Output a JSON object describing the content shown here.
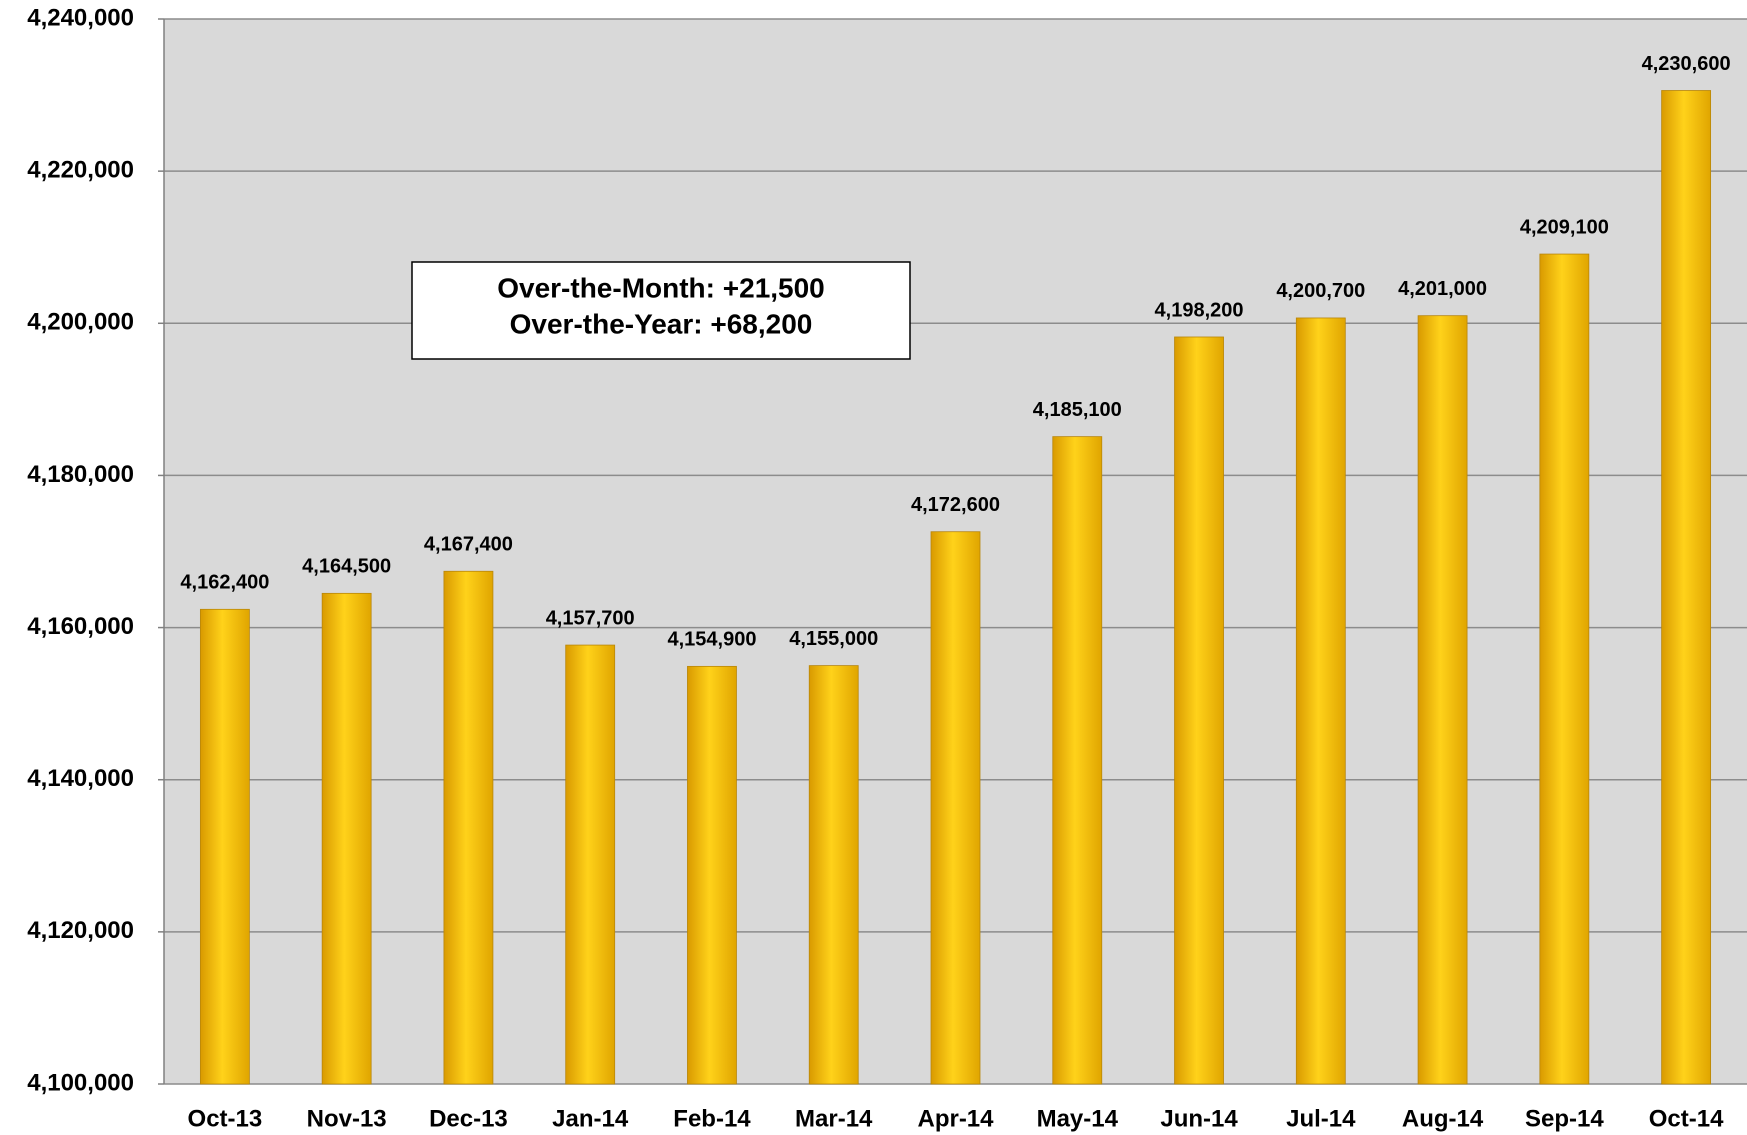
{
  "chart_data": {
    "type": "bar",
    "categories": [
      "Oct-13",
      "Nov-13",
      "Dec-13",
      "Jan-14",
      "Feb-14",
      "Mar-14",
      "Apr-14",
      "May-14",
      "Jun-14",
      "Jul-14",
      "Aug-14",
      "Sep-14",
      "Oct-14"
    ],
    "values": [
      4162400,
      4164500,
      4167400,
      4157700,
      4154900,
      4155000,
      4172600,
      4185100,
      4198200,
      4200700,
      4201000,
      4209100,
      4230600
    ],
    "value_labels": [
      "4,162,400",
      "4,164,500",
      "4,167,400",
      "4,157,700",
      "4,154,900",
      "4,155,000",
      "4,172,600",
      "4,185,100",
      "4,198,200",
      "4,200,700",
      "4,201,000",
      "4,209,100",
      "4,230,600"
    ],
    "color": "#ffc000",
    "ylim": [
      4100000,
      4240000
    ],
    "yticks": [
      {
        "value": 4100000,
        "label": "4,100,000"
      },
      {
        "value": 4120000,
        "label": "4,120,000"
      },
      {
        "value": 4140000,
        "label": "4,140,000"
      },
      {
        "value": 4160000,
        "label": "4,160,000"
      },
      {
        "value": 4180000,
        "label": "4,180,000"
      },
      {
        "value": 4200000,
        "label": "4,200,000"
      },
      {
        "value": 4220000,
        "label": "4,220,000"
      },
      {
        "value": 4240000,
        "label": "4,240,000"
      }
    ],
    "grid": true,
    "annotations": [
      "Over-the-Month: +21,500",
      "Over-the-Year: +68,200"
    ]
  }
}
